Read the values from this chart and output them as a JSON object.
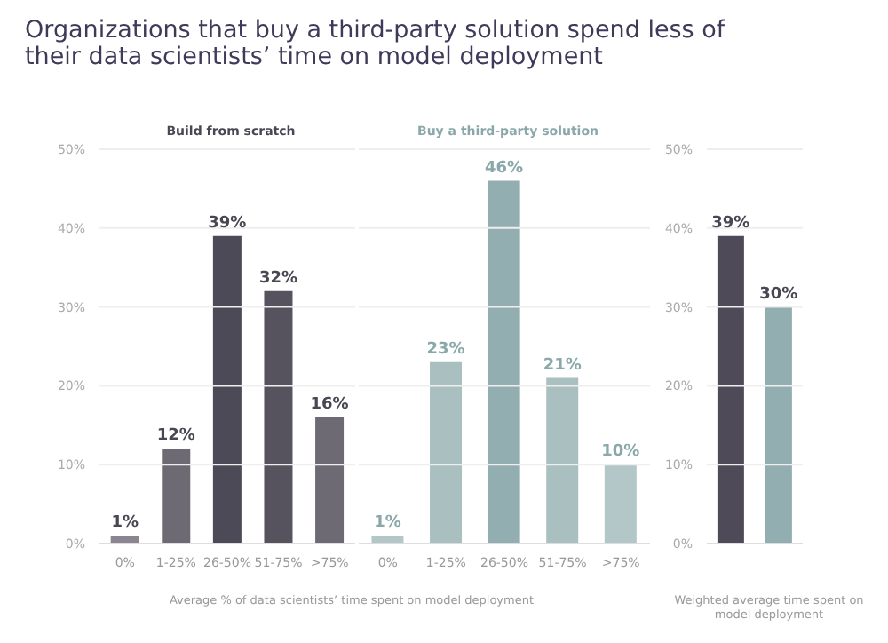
{
  "chart_data": [
    {
      "type": "bar",
      "title": "Organizations that buy a third-party solution spend less of their data scientists’ time on model deployment",
      "subtitle": "Build from scratch",
      "xlabel": "Average % of data scientists’ time spent on model deployment",
      "categories": [
        "0%",
        "1-25%",
        "26-50%",
        "51-75%",
        ">75%"
      ],
      "values": [
        1,
        12,
        39,
        32,
        16
      ],
      "colors": [
        "#8a8590",
        "#6e6a74",
        "#4d4a57",
        "#56525e",
        "#6e6a74"
      ],
      "value_labels": [
        "1%",
        "12%",
        "39%",
        "32%",
        "16%"
      ],
      "ylim": [
        0,
        50
      ],
      "yticks": [
        {
          "value": 0,
          "label": "0%"
        },
        {
          "value": 10,
          "label": "10%"
        },
        {
          "value": 20,
          "label": "20%"
        },
        {
          "value": 30,
          "label": "30%"
        },
        {
          "value": 40,
          "label": "40%"
        },
        {
          "value": 50,
          "label": "50%"
        }
      ],
      "grid": "y"
    },
    {
      "type": "bar",
      "subtitle": "Buy a third-party solution",
      "categories": [
        "0%",
        "1-25%",
        "26-50%",
        "51-75%",
        ">75%"
      ],
      "values": [
        1,
        23,
        46,
        21,
        10
      ],
      "colors": [
        "#b3c7c8",
        "#a9bfc0",
        "#93aeb0",
        "#a9bfc0",
        "#b3c7c8"
      ],
      "value_labels": [
        "1%",
        "23%",
        "46%",
        "21%",
        "10%"
      ],
      "ylim": [
        0,
        50
      ],
      "yticks": [
        0,
        10,
        20,
        30,
        40,
        50
      ],
      "grid": "y",
      "tick_labels": "x"
    },
    {
      "type": "bar",
      "xlabel": "Weighted average time spent on model deployment",
      "categories": [
        null,
        null
      ],
      "values": [
        39,
        30
      ],
      "colors": [
        "#4e4a58",
        "#93aeb0"
      ],
      "value_labels": [
        "39%",
        "30%"
      ],
      "ylim": [
        0,
        50
      ],
      "yticks": [
        {
          "value": 0,
          "label": "0%"
        },
        {
          "value": 10,
          "label": "10%"
        },
        {
          "value": 20,
          "label": "20%"
        },
        {
          "value": 30,
          "label": "30%"
        },
        {
          "value": 40,
          "label": "40%"
        },
        {
          "value": 50,
          "label": "50%"
        }
      ],
      "grid": "y"
    }
  ]
}
